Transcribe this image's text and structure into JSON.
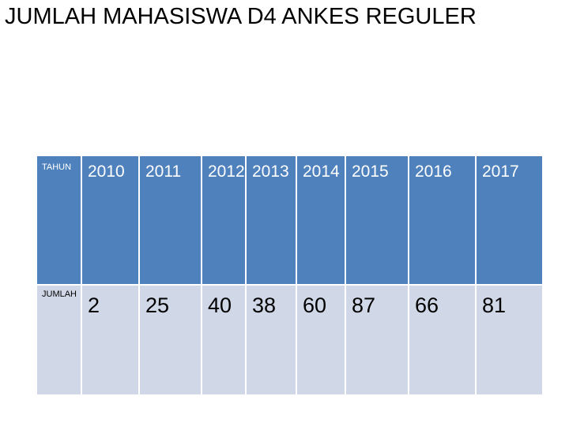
{
  "title": "JUMLAH MAHASISWA D4 ANKES REGULER",
  "table": {
    "header_label": "TAHUN",
    "value_label": "JUMLAH",
    "years": [
      "2010",
      "2011",
      "2012",
      "2013",
      "2014",
      "2015",
      "2016",
      "2017"
    ],
    "values": [
      "2",
      "25",
      "40",
      "38",
      "60",
      "87",
      "66",
      "81"
    ]
  },
  "colors": {
    "header_fill": "#4f81bd",
    "body_fill": "#d0d8e8",
    "header_text": "#ffffff"
  }
}
